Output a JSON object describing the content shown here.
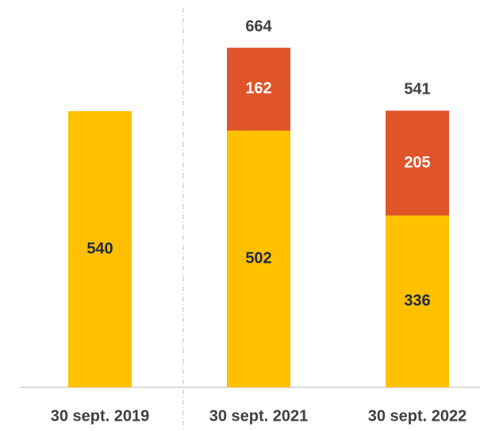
{
  "chart_data": {
    "type": "stacked_bar",
    "categories": [
      "30 sept. 2019",
      "30 sept. 2021",
      "30 sept. 2022"
    ],
    "series": [
      {
        "color": "#FFC000",
        "values": [
          540,
          502,
          336
        ]
      },
      {
        "color": "#E0542A",
        "values": [
          null,
          162,
          205
        ]
      }
    ],
    "totals": [
      null,
      664,
      541
    ],
    "ylim": [
      0,
      700
    ]
  }
}
